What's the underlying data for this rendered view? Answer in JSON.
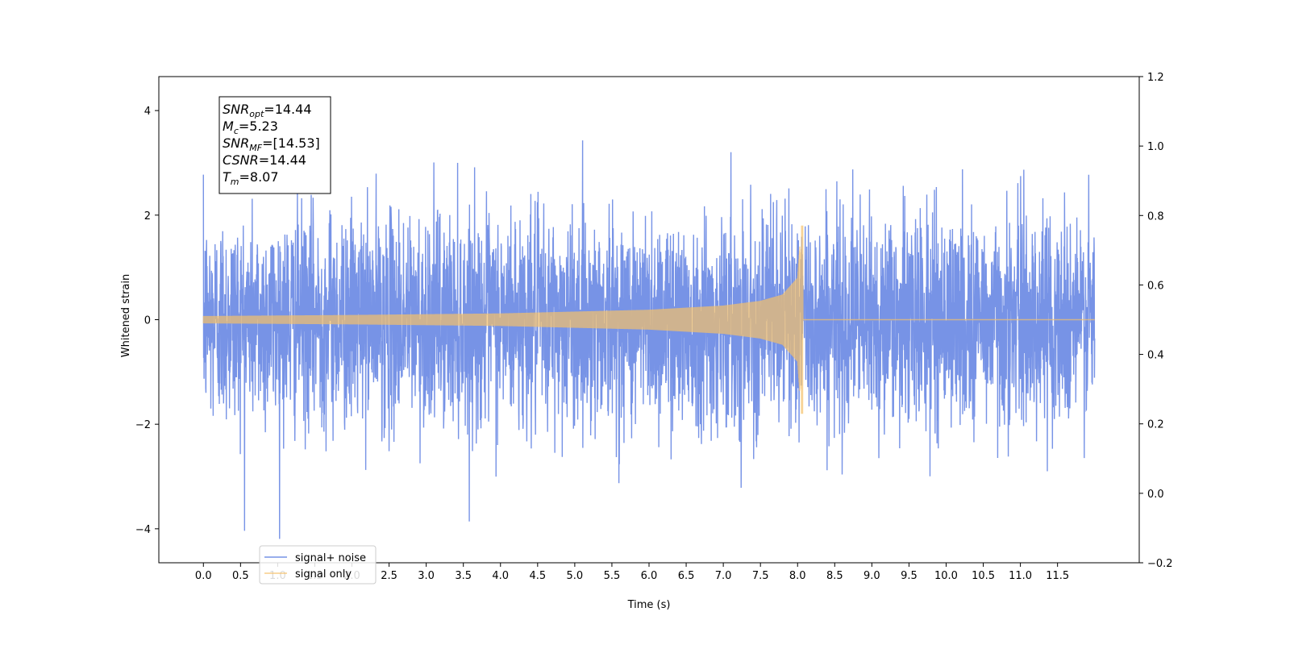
{
  "chart_data": {
    "type": "line",
    "xlabel": "Time (s)",
    "ylabel": "Whitened strain",
    "xlim": [
      -0.6,
      12.6
    ],
    "ylim": [
      -4.65,
      4.65
    ],
    "y2lim": [
      -0.2,
      1.2
    ],
    "x_ticks": [
      0.0,
      0.5,
      1.0,
      1.5,
      2.0,
      2.5,
      3.0,
      3.5,
      4.0,
      4.5,
      5.0,
      5.5,
      6.0,
      6.5,
      7.0,
      7.5,
      8.0,
      8.5,
      9.0,
      9.5,
      10.0,
      10.5,
      11.0,
      11.5
    ],
    "x_tick_labels": [
      "0.0",
      "0.5",
      "1.0",
      "1.5",
      "2.0",
      "2.5",
      "3.0",
      "3.5",
      "4.0",
      "4.5",
      "5.0",
      "5.5",
      "6.0",
      "6.5",
      "7.0",
      "7.5",
      "8.0",
      "8.5",
      "9.0",
      "9.5",
      "10.0",
      "10.5",
      "11.0",
      "11.5"
    ],
    "y_ticks": [
      -4,
      -2,
      0,
      2,
      4
    ],
    "y_tick_labels": [
      "−4",
      "−2",
      "0",
      "2",
      "4"
    ],
    "y2_ticks": [
      -0.2,
      0.0,
      0.2,
      0.4,
      0.6,
      0.8,
      1.0,
      1.2
    ],
    "y2_tick_labels": [
      "−0.2",
      "0.0",
      "0.2",
      "0.4",
      "0.6",
      "0.8",
      "1.0",
      "1.2"
    ],
    "grid": false,
    "legend_position": "bottom-left",
    "series": [
      {
        "name": "signal+ noise",
        "color": "#7793e6",
        "x_range": [
          0.0,
          12.0
        ],
        "noise_std": 1.0,
        "approx_range": [
          -4.2,
          4.2
        ]
      },
      {
        "name": "signal only",
        "color": "#f5c06a",
        "x_range": [
          0.0,
          12.0
        ],
        "merger_time": 8.07,
        "envelope": [
          {
            "x": 0.0,
            "y": 0.07
          },
          {
            "x": 2.0,
            "y": 0.09
          },
          {
            "x": 4.0,
            "y": 0.12
          },
          {
            "x": 6.0,
            "y": 0.19
          },
          {
            "x": 7.0,
            "y": 0.27
          },
          {
            "x": 7.5,
            "y": 0.36
          },
          {
            "x": 7.8,
            "y": 0.48
          },
          {
            "x": 8.0,
            "y": 0.8
          },
          {
            "x": 8.05,
            "y": 1.8
          }
        ],
        "post_merger_value": 0.0
      }
    ],
    "annotation": {
      "lines": [
        {
          "base": "SNR",
          "sub": "opt",
          "text": "=14.44"
        },
        {
          "base": "M",
          "sub": "c",
          "text": "=5.23"
        },
        {
          "base": "SNR",
          "sub": "MF",
          "text": "=[14.53]"
        },
        {
          "base": "CSNR",
          "sub": "",
          "text": "=14.44"
        },
        {
          "base": "T",
          "sub": "m",
          "text": "=8.07"
        }
      ]
    }
  }
}
